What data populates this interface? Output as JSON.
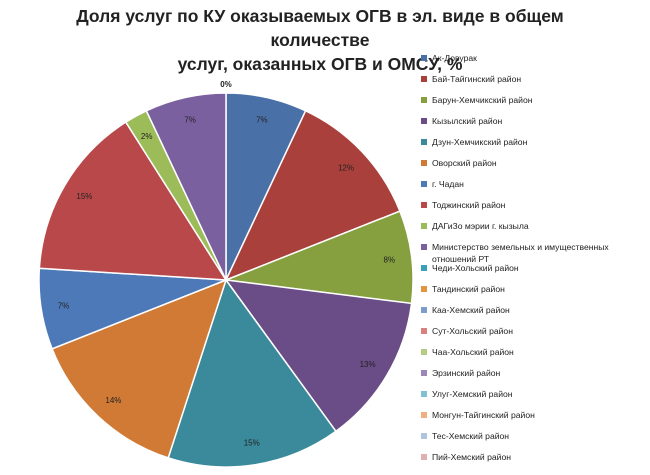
{
  "chart_data": {
    "type": "pie",
    "title_lines": [
      "Доля услуг по КУ оказываемых ОГВ в эл. виде в общем количестве",
      "услуг, оказанных ОГВ и ОМСУ, %"
    ],
    "slices": [
      {
        "name": "Ак-Довурак",
        "value": 7,
        "label": "7%",
        "color": "#4a70a8"
      },
      {
        "name": "Бай-Тайгинский район",
        "value": 12,
        "label": "12%",
        "color": "#a9403c"
      },
      {
        "name": "Барун-Хемчикский район",
        "value": 8,
        "label": "8%",
        "color": "#86a03f"
      },
      {
        "name": "Кызылский район",
        "value": 13,
        "label": "13%",
        "color": "#6a4c86"
      },
      {
        "name": "Дзун-Хемчикский район",
        "value": 15,
        "label": "15%",
        "color": "#3a8a9c"
      },
      {
        "name": "Оворский район",
        "value": 14,
        "label": "14%",
        "color": "#d07a35"
      },
      {
        "name": "г. Чадан",
        "value": 7,
        "label": "7%",
        "color": "#4e79b8"
      },
      {
        "name": "Тоджинский район",
        "value": 15,
        "label": "15%",
        "color": "#b9484a"
      },
      {
        "name": "ДАГиЗо мэрии г. кызыла",
        "value": 2,
        "label": "2%",
        "color": "#9cbb59"
      },
      {
        "name": "Министерство земельных и имущественных отношений РТ",
        "value": 7,
        "label": "7%",
        "color": "#7b60a0"
      },
      {
        "name": "Чеди-Хольский район",
        "value": 0,
        "label": "0%",
        "color": "#3aa0b8"
      },
      {
        "name": "Тандинский район",
        "value": 0,
        "label": "",
        "color": "#e3943f"
      },
      {
        "name": "Каа-Хемский район",
        "value": 0,
        "label": "",
        "color": "#7c9ccc"
      },
      {
        "name": "Сут-Хольский район",
        "value": 0,
        "label": "",
        "color": "#d9807e"
      },
      {
        "name": "Чаа-Хольский район",
        "value": 0,
        "label": "",
        "color": "#b3cc82"
      },
      {
        "name": "Эрзинский район",
        "value": 0,
        "label": "",
        "color": "#9b88b8"
      },
      {
        "name": "Улуг-Хемский район",
        "value": 0,
        "label": "",
        "color": "#82c0d4"
      },
      {
        "name": "Монгун-Тайгинский район",
        "value": 0,
        "label": "",
        "color": "#f1ae80"
      },
      {
        "name": "Тес-Хемский район",
        "value": 0,
        "label": "",
        "color": "#b0c4e0"
      },
      {
        "name": "Пий-Хемский район",
        "value": 0,
        "label": "",
        "color": "#e0b0b0"
      }
    ],
    "legend_position": "right"
  }
}
